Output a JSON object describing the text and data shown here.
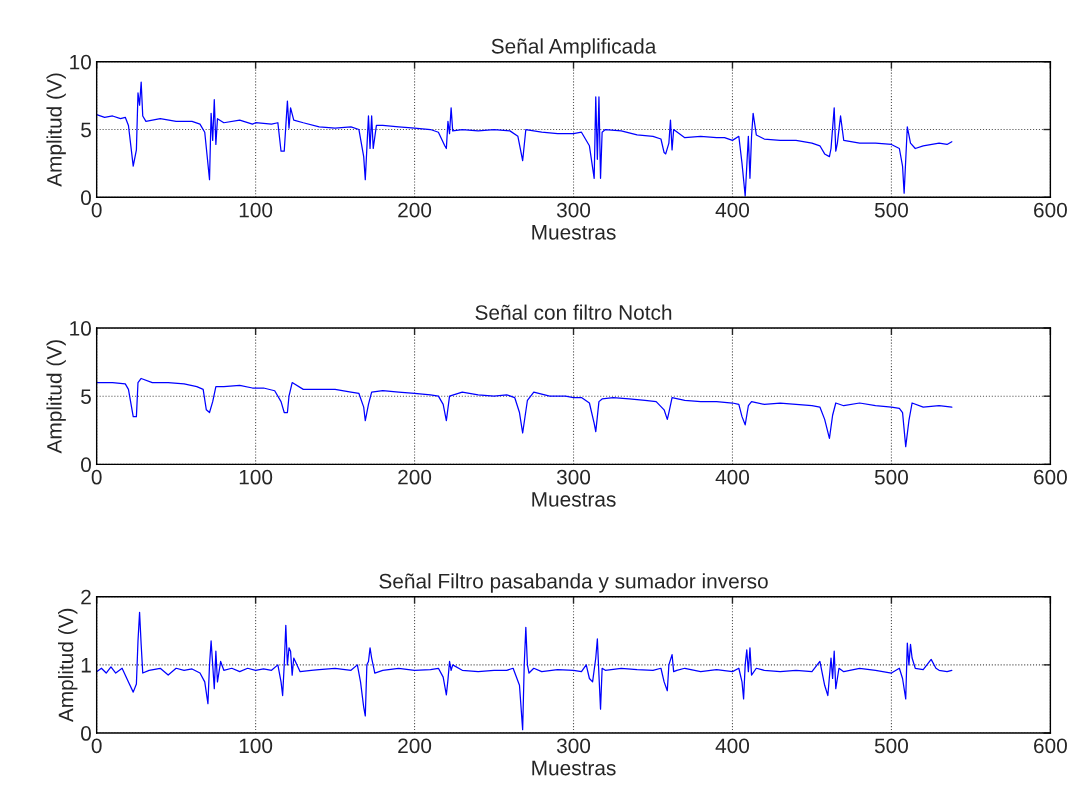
{
  "chart_data": [
    {
      "type": "line",
      "title": "Señal Amplificada",
      "xlabel": "Muestras",
      "ylabel": "Amplitud (V)",
      "xlim": [
        0,
        600
      ],
      "ylim": [
        0,
        10
      ],
      "xticks": [
        0,
        100,
        200,
        300,
        400,
        500,
        600
      ],
      "yticks": [
        0,
        5,
        10
      ],
      "grid": true,
      "series": [
        {
          "color": "#0000ff",
          "x": [
            0,
            5,
            10,
            15,
            18,
            20,
            23,
            25,
            26,
            27,
            28,
            29,
            31,
            40,
            50,
            60,
            65,
            68,
            71,
            72,
            73,
            74,
            75,
            76,
            80,
            90,
            98,
            100,
            110,
            114,
            116,
            118,
            120,
            121,
            122,
            124,
            130,
            140,
            150,
            160,
            165,
            168,
            169,
            171,
            172,
            173,
            174,
            176,
            180,
            190,
            200,
            210,
            215,
            219,
            220,
            221,
            222,
            223,
            224,
            230,
            240,
            250,
            260,
            265,
            268,
            270,
            280,
            290,
            300,
            305,
            310,
            313,
            314,
            315,
            316,
            317,
            318,
            320,
            330,
            340,
            350,
            355,
            357,
            358,
            360,
            361,
            362,
            363,
            370,
            380,
            390,
            395,
            400,
            404,
            406,
            408,
            410,
            411,
            412,
            413,
            415,
            420,
            430,
            440,
            450,
            455,
            458,
            461,
            462,
            464,
            465,
            466,
            468,
            470,
            480,
            490,
            500,
            505,
            507,
            508,
            510,
            512,
            515,
            520,
            530,
            535,
            538
          ],
          "values": [
            6.1,
            5.9,
            6.0,
            5.8,
            5.9,
            5.3,
            2.3,
            3.5,
            7.7,
            6.8,
            8.5,
            6.0,
            5.6,
            5.8,
            5.6,
            5.6,
            5.4,
            4.8,
            1.3,
            6.2,
            4.2,
            7.2,
            3.9,
            5.8,
            5.5,
            5.7,
            5.4,
            5.5,
            5.4,
            5.5,
            3.4,
            3.4,
            7.1,
            5.1,
            6.6,
            5.7,
            5.5,
            5.2,
            5.1,
            5.2,
            5.0,
            3.0,
            1.3,
            6.0,
            3.6,
            6.0,
            3.6,
            5.3,
            5.3,
            5.2,
            5.1,
            5.0,
            4.8,
            3.8,
            3.6,
            5.6,
            4.7,
            6.6,
            4.9,
            5.0,
            4.9,
            5.0,
            4.9,
            4.5,
            2.7,
            5.0,
            4.8,
            4.7,
            4.7,
            4.8,
            3.8,
            1.4,
            7.4,
            2.8,
            7.4,
            1.4,
            4.8,
            5.0,
            4.9,
            4.6,
            4.5,
            4.3,
            3.3,
            3.2,
            4.0,
            5.7,
            3.5,
            5.0,
            4.4,
            4.5,
            4.4,
            4.4,
            4.2,
            4.5,
            2.5,
            0.1,
            4.5,
            1.4,
            4.5,
            6.2,
            4.6,
            4.3,
            4.2,
            4.2,
            4.0,
            3.8,
            3.2,
            3.0,
            3.6,
            6.6,
            3.4,
            4.0,
            6.0,
            4.2,
            4.0,
            4.0,
            3.9,
            3.6,
            2.3,
            0.3,
            5.2,
            4.0,
            3.6,
            3.8,
            4.0,
            3.9,
            4.1
          ]
        }
      ]
    },
    {
      "type": "line",
      "title": "Señal con filtro Notch",
      "xlabel": "Muestras",
      "ylabel": "Amplitud (V)",
      "xlim": [
        0,
        600
      ],
      "ylim": [
        0,
        10
      ],
      "xticks": [
        0,
        100,
        200,
        300,
        400,
        500,
        600
      ],
      "yticks": [
        0,
        5,
        10
      ],
      "grid": true,
      "series": [
        {
          "color": "#0000ff",
          "x": [
            0,
            10,
            18,
            20,
            23,
            25,
            26,
            28,
            35,
            45,
            55,
            63,
            67,
            69,
            71,
            73,
            75,
            80,
            90,
            98,
            105,
            112,
            116,
            118,
            120,
            121,
            123,
            130,
            140,
            150,
            160,
            165,
            168,
            169,
            171,
            173,
            180,
            190,
            200,
            210,
            215,
            218,
            220,
            222,
            230,
            240,
            250,
            258,
            263,
            266,
            268,
            271,
            275,
            285,
            295,
            300,
            305,
            310,
            313,
            314,
            316,
            318,
            325,
            335,
            345,
            352,
            357,
            359,
            360,
            362,
            370,
            380,
            390,
            400,
            404,
            406,
            408,
            410,
            412,
            420,
            430,
            440,
            450,
            455,
            458,
            461,
            463,
            465,
            470,
            480,
            490,
            500,
            505,
            507,
            509,
            511,
            513,
            520,
            530,
            538
          ],
          "values": [
            6.0,
            6.0,
            5.9,
            5.5,
            3.5,
            3.5,
            6.0,
            6.3,
            6.0,
            6.0,
            5.9,
            5.7,
            5.5,
            4.0,
            3.8,
            4.6,
            5.7,
            5.7,
            5.8,
            5.6,
            5.6,
            5.4,
            4.6,
            3.8,
            3.8,
            5.0,
            6.0,
            5.5,
            5.5,
            5.5,
            5.3,
            5.2,
            4.2,
            3.2,
            4.4,
            5.3,
            5.4,
            5.3,
            5.2,
            5.1,
            5.0,
            4.4,
            3.2,
            5.0,
            5.3,
            5.1,
            5.0,
            5.1,
            4.9,
            3.8,
            2.3,
            4.7,
            5.3,
            5.0,
            5.0,
            4.9,
            4.9,
            4.5,
            3.0,
            2.4,
            4.6,
            4.8,
            4.9,
            4.8,
            4.7,
            4.6,
            4.0,
            3.3,
            3.8,
            4.9,
            4.7,
            4.6,
            4.6,
            4.5,
            4.4,
            3.5,
            2.9,
            4.3,
            4.6,
            4.4,
            4.5,
            4.4,
            4.3,
            4.2,
            3.3,
            1.9,
            3.6,
            4.5,
            4.3,
            4.5,
            4.3,
            4.2,
            4.1,
            3.8,
            1.3,
            3.2,
            4.5,
            4.2,
            4.3,
            4.2
          ]
        }
      ]
    },
    {
      "type": "line",
      "title": "Señal Filtro pasabanda y sumador inverso",
      "xlabel": "Muestras",
      "ylabel": "Amplitud (V)",
      "xlim": [
        0,
        600
      ],
      "ylim": [
        0,
        2
      ],
      "xticks": [
        0,
        100,
        200,
        300,
        400,
        500,
        600
      ],
      "yticks": [
        0,
        1,
        2
      ],
      "grid": true,
      "series": [
        {
          "color": "#0000ff",
          "x": [
            0,
            3,
            6,
            9,
            12,
            16,
            20,
            23,
            25,
            26,
            27,
            28,
            29,
            33,
            40,
            45,
            50,
            55,
            60,
            65,
            68,
            70,
            71,
            72,
            73,
            74,
            75,
            76,
            78,
            80,
            85,
            90,
            95,
            100,
            105,
            110,
            114,
            116,
            117,
            118,
            119,
            120,
            121,
            122,
            123,
            124,
            128,
            135,
            140,
            150,
            160,
            164,
            166,
            168,
            169,
            170,
            171,
            172,
            173,
            175,
            180,
            190,
            200,
            210,
            215,
            218,
            220,
            221,
            222,
            223,
            224,
            230,
            240,
            250,
            258,
            262,
            266,
            268,
            269,
            270,
            271,
            272,
            275,
            280,
            290,
            300,
            305,
            308,
            310,
            312,
            314,
            315,
            316,
            317,
            318,
            320,
            330,
            340,
            350,
            355,
            357,
            359,
            360,
            362,
            363,
            365,
            370,
            380,
            390,
            400,
            404,
            406,
            407,
            408,
            409,
            410,
            411,
            412,
            415,
            420,
            430,
            440,
            450,
            455,
            458,
            460,
            462,
            463,
            464,
            465,
            467,
            470,
            480,
            490,
            500,
            505,
            507,
            509,
            510,
            511,
            512,
            513,
            515,
            520,
            525,
            528,
            530,
            535,
            538
          ],
          "values": [
            0.9,
            0.95,
            0.88,
            0.97,
            0.88,
            0.95,
            0.75,
            0.6,
            0.72,
            1.35,
            1.77,
            1.3,
            0.88,
            0.92,
            0.95,
            0.85,
            0.95,
            0.92,
            0.94,
            0.88,
            0.75,
            0.43,
            1.0,
            1.35,
            1.0,
            0.65,
            1.2,
            0.75,
            1.05,
            0.92,
            0.95,
            0.9,
            0.95,
            0.92,
            0.94,
            0.92,
            1.0,
            0.75,
            0.55,
            1.0,
            1.58,
            1.0,
            1.25,
            1.2,
            0.85,
            1.1,
            0.9,
            0.92,
            0.93,
            0.95,
            0.92,
            1.0,
            0.75,
            0.38,
            0.25,
            1.0,
            1.05,
            1.25,
            1.1,
            0.88,
            0.92,
            0.95,
            0.92,
            0.93,
            0.95,
            0.82,
            0.56,
            0.78,
            1.05,
            0.92,
            1.0,
            0.92,
            0.9,
            0.92,
            0.92,
            0.95,
            0.7,
            0.05,
            1.0,
            1.55,
            1.0,
            0.88,
            0.95,
            0.9,
            0.93,
            0.92,
            0.9,
            1.0,
            0.8,
            0.75,
            1.1,
            1.38,
            0.85,
            0.35,
            0.95,
            0.92,
            0.95,
            0.93,
            0.92,
            0.95,
            0.75,
            0.62,
            1.0,
            1.15,
            0.9,
            0.92,
            0.95,
            0.9,
            0.93,
            0.9,
            0.95,
            0.75,
            0.5,
            1.0,
            1.22,
            0.9,
            1.25,
            0.85,
            0.95,
            0.92,
            0.9,
            0.92,
            0.9,
            1.05,
            0.7,
            0.55,
            1.1,
            0.8,
            1.2,
            0.65,
            0.95,
            0.9,
            0.95,
            0.92,
            0.88,
            0.95,
            0.8,
            0.5,
            1.32,
            1.0,
            1.3,
            1.1,
            0.95,
            0.93,
            1.08,
            0.95,
            0.92,
            0.9,
            0.92
          ]
        }
      ]
    }
  ]
}
